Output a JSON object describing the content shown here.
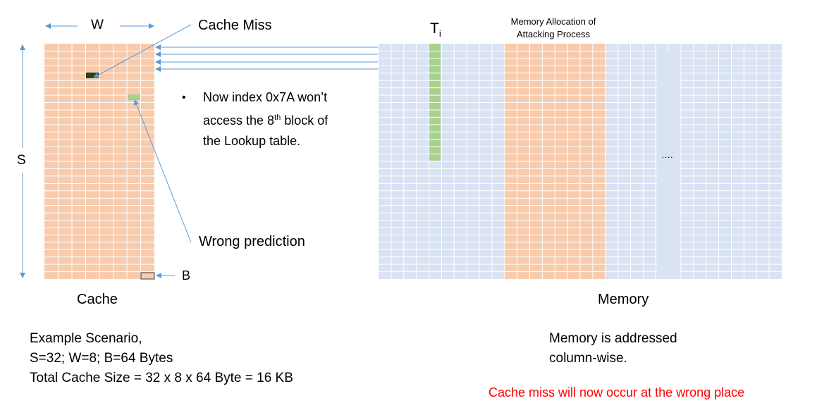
{
  "cache": {
    "label": "Cache",
    "width_label": "W",
    "sets_label": "S",
    "block_label": "B",
    "colors": {
      "cell": "#f8cbad",
      "line": "#ffffff",
      "miss": "#1e4620",
      "wrong": "#a9d18e",
      "block_border": "#595959"
    }
  },
  "annotations": {
    "cache_miss": "Cache Miss",
    "wrong_prediction": "Wrong prediction",
    "bullet": "•",
    "note_text": "Now index 0x7A won’t access the 8",
    "note_sup": "th",
    "note_tail": "block of the Lookup table."
  },
  "memory": {
    "label": "Memory",
    "ti_main": "T",
    "ti_sub": "i",
    "alloc_line1": "Memory Allocation of",
    "alloc_line2": "Attacking Process",
    "ellipsis": "….",
    "colors": {
      "cell": "#dae3f3",
      "line": "#ffffff",
      "alloc": "#f8cbad",
      "ti": "#a9d18e"
    },
    "note_line1": "Memory is addressed",
    "note_line2": "column-wise."
  },
  "scenario": {
    "line1": "Example Scenario,",
    "line2": "S=32; W=8; B=64 Bytes",
    "line3": "Total Cache Size = 32 x 8 x 64 Byte = 16 KB"
  },
  "footer": {
    "red_note": "Cache miss will now occur at the wrong place",
    "red_color": "#ff0000"
  },
  "arrow_color": "#5b9bd5"
}
